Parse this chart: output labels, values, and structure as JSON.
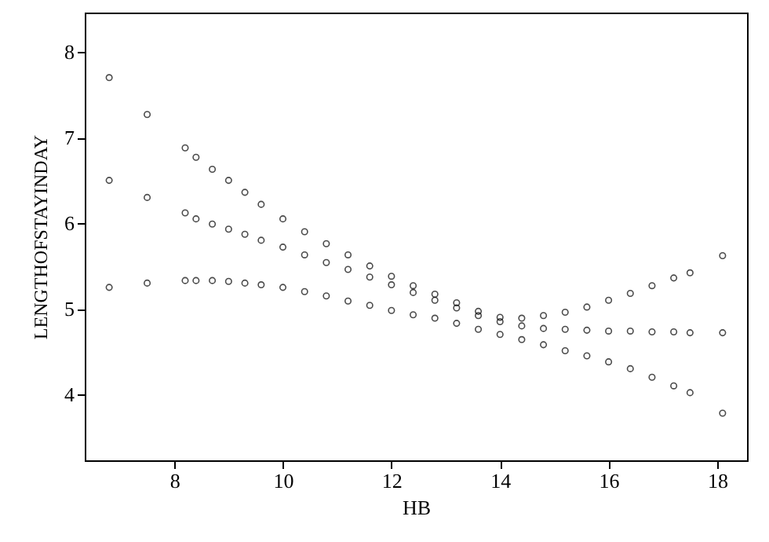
{
  "chart_data": {
    "type": "scatter",
    "xlabel": "HB",
    "ylabel": "LENGTHOFSTAYINDAY",
    "x": [
      6.8,
      7.5,
      8.2,
      8.4,
      8.7,
      9,
      9.3,
      9.6,
      10,
      10.4,
      10.8,
      11.2,
      11.6,
      12,
      12.4,
      12.8,
      13.2,
      13.6,
      14,
      14.4,
      14.8,
      15.2,
      15.6,
      16,
      16.4,
      16.8,
      17.2,
      17.5,
      18.1
    ],
    "series": [
      {
        "color": "#000000",
        "values": [
          7.7,
          7.27,
          6.88,
          6.77,
          6.63,
          6.5,
          6.36,
          6.22,
          6.05,
          5.9,
          5.76,
          5.63,
          5.5,
          5.38,
          5.27,
          5.17,
          5.07,
          4.97,
          4.9,
          4.89,
          4.92,
          4.96,
          5.02,
          5.1,
          5.18,
          5.27,
          5.36,
          5.42,
          5.62
        ]
      },
      {
        "color": "#000000",
        "values": [
          6.5,
          6.3,
          6.12,
          6.05,
          5.99,
          5.93,
          5.87,
          5.8,
          5.72,
          5.63,
          5.54,
          5.46,
          5.37,
          5.28,
          5.19,
          5.1,
          5.01,
          4.92,
          4.85,
          4.8,
          4.77,
          4.76,
          4.75,
          4.74,
          4.74,
          4.73,
          4.73,
          4.72,
          4.72
        ]
      },
      {
        "color": "#000000",
        "values": [
          5.25,
          5.3,
          5.33,
          5.33,
          5.33,
          5.32,
          5.3,
          5.28,
          5.25,
          5.2,
          5.15,
          5.09,
          5.04,
          4.98,
          4.93,
          4.89,
          4.83,
          4.76,
          4.7,
          4.64,
          4.58,
          4.51,
          4.45,
          4.38,
          4.3,
          4.2,
          4.1,
          4.02,
          3.78
        ]
      }
    ],
    "xlim": [
      6.35,
      18.55
    ],
    "ylim": [
      3.23,
      8.46
    ],
    "xticks": [
      8,
      10,
      12,
      14,
      16,
      18
    ],
    "yticks": [
      4,
      5,
      6,
      7,
      8
    ],
    "marker": "circle",
    "grid": false
  }
}
